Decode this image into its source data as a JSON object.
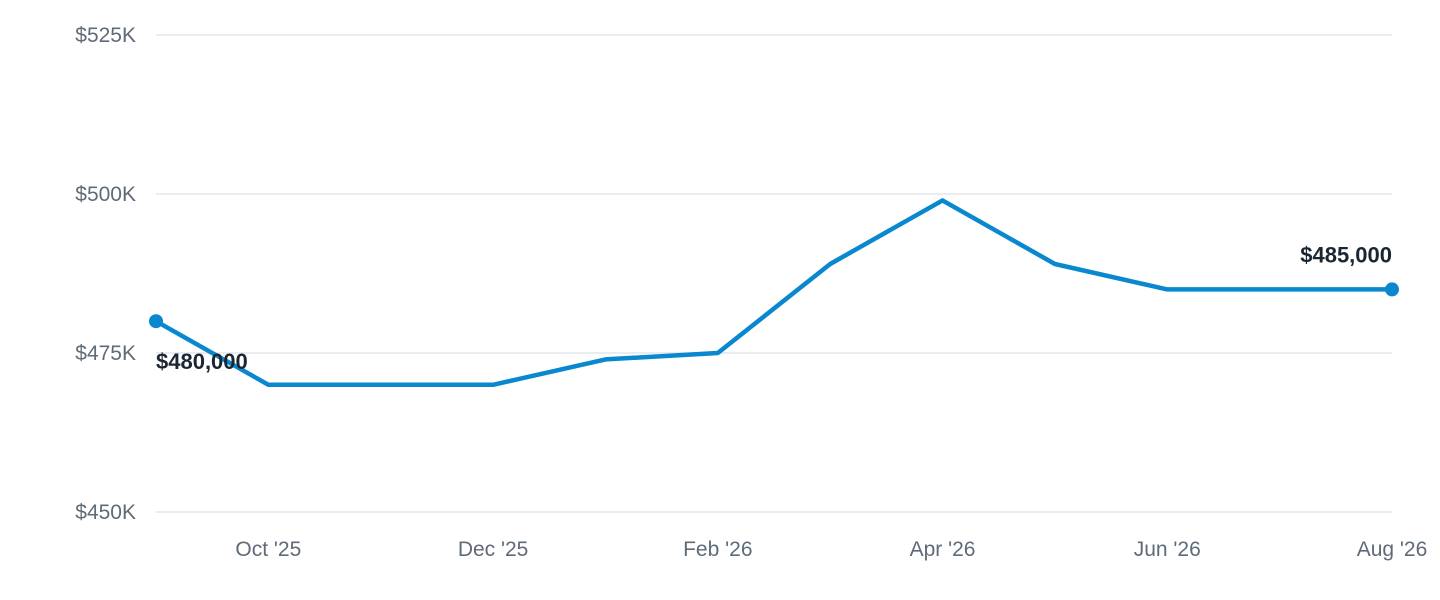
{
  "chart_data": {
    "type": "line",
    "x": [
      "2025-09",
      "2025-10",
      "2025-11",
      "2025-12",
      "2026-01",
      "2026-02",
      "2026-03",
      "2026-04",
      "2026-05",
      "2026-06",
      "2026-07",
      "2026-08"
    ],
    "series": [
      {
        "values": [
          480000,
          470000,
          470000,
          470000,
          474000,
          475000,
          489000,
          499000,
          489000,
          485000,
          485000,
          485000
        ],
        "color": "#0a88cf"
      }
    ],
    "x_ticks": [
      {
        "x": "2025-10",
        "label": "Oct '25"
      },
      {
        "x": "2025-12",
        "label": "Dec '25"
      },
      {
        "x": "2026-02",
        "label": "Feb '26"
      },
      {
        "x": "2026-04",
        "label": "Apr '26"
      },
      {
        "x": "2026-06",
        "label": "Jun '26"
      },
      {
        "x": "2026-08",
        "label": "Aug '26"
      }
    ],
    "y_ticks": [
      {
        "value": 450000,
        "label": "$450K"
      },
      {
        "value": 475000,
        "label": "$475K"
      },
      {
        "value": 500000,
        "label": "$500K"
      },
      {
        "value": 525000,
        "label": "$525K"
      }
    ],
    "ylim": [
      450000,
      525000
    ],
    "grid": true,
    "data_labels": [
      {
        "x": "2025-09",
        "value": 480000,
        "label": "$480,000"
      },
      {
        "x": "2026-08",
        "value": 485000,
        "label": "$485,000"
      }
    ],
    "title": "",
    "xlabel": "",
    "ylabel": ""
  }
}
